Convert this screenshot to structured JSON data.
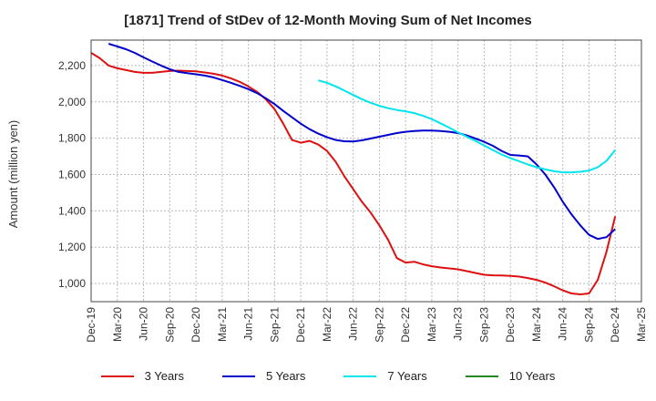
{
  "chart_data": {
    "type": "line",
    "title": "[1871]  Trend of StDev of 12-Month Moving Sum of Net Incomes",
    "ylabel": "Amount (million yen)",
    "xlabel": "",
    "ylim": [
      900,
      2340
    ],
    "yticks": [
      1000,
      1200,
      1400,
      1600,
      1800,
      2000,
      2200
    ],
    "ytick_labels": [
      "1,000",
      "1,200",
      "1,400",
      "1,600",
      "1,800",
      "2,000",
      "2,200"
    ],
    "xlim": [
      "2019-12",
      "2025-03"
    ],
    "xticks": [
      "2019-12",
      "2020-03",
      "2020-06",
      "2020-09",
      "2020-12",
      "2021-03",
      "2021-06",
      "2021-09",
      "2021-12",
      "2022-03",
      "2022-06",
      "2022-09",
      "2022-12",
      "2023-03",
      "2023-06",
      "2023-09",
      "2023-12",
      "2024-03",
      "2024-06",
      "2024-09",
      "2024-12",
      "2025-03"
    ],
    "xtick_labels": [
      "Dec-19",
      "Mar-20",
      "Jun-20",
      "Sep-20",
      "Dec-20",
      "Mar-21",
      "Jun-21",
      "Sep-21",
      "Dec-21",
      "Mar-22",
      "Jun-22",
      "Sep-22",
      "Dec-22",
      "Mar-23",
      "Jun-23",
      "Sep-23",
      "Dec-23",
      "Mar-24",
      "Jun-24",
      "Sep-24",
      "Dec-24",
      "Mar-25"
    ],
    "grid": true,
    "legend_position": "bottom",
    "series": [
      {
        "name": "3 Years",
        "color": "#dd1111",
        "points": [
          [
            "2019-12",
            2270
          ],
          [
            "2020-01",
            2240
          ],
          [
            "2020-02",
            2200
          ],
          [
            "2020-03",
            2185
          ],
          [
            "2020-04",
            2175
          ],
          [
            "2020-05",
            2165
          ],
          [
            "2020-06",
            2160
          ],
          [
            "2020-07",
            2160
          ],
          [
            "2020-08",
            2165
          ],
          [
            "2020-09",
            2170
          ],
          [
            "2020-10",
            2172
          ],
          [
            "2020-11",
            2170
          ],
          [
            "2020-12",
            2168
          ],
          [
            "2021-01",
            2162
          ],
          [
            "2021-02",
            2155
          ],
          [
            "2021-03",
            2145
          ],
          [
            "2021-04",
            2130
          ],
          [
            "2021-05",
            2110
          ],
          [
            "2021-06",
            2085
          ],
          [
            "2021-07",
            2055
          ],
          [
            "2021-08",
            2015
          ],
          [
            "2021-09",
            1960
          ],
          [
            "2021-10",
            1880
          ],
          [
            "2021-11",
            1790
          ],
          [
            "2021-12",
            1775
          ],
          [
            "2022-01",
            1785
          ],
          [
            "2022-02",
            1765
          ],
          [
            "2022-03",
            1730
          ],
          [
            "2022-04",
            1670
          ],
          [
            "2022-05",
            1590
          ],
          [
            "2022-06",
            1520
          ],
          [
            "2022-07",
            1450
          ],
          [
            "2022-08",
            1390
          ],
          [
            "2022-09",
            1320
          ],
          [
            "2022-10",
            1240
          ],
          [
            "2022-11",
            1140
          ],
          [
            "2022-12",
            1115
          ],
          [
            "2023-01",
            1120
          ],
          [
            "2023-02",
            1105
          ],
          [
            "2023-03",
            1095
          ],
          [
            "2023-04",
            1088
          ],
          [
            "2023-05",
            1083
          ],
          [
            "2023-06",
            1078
          ],
          [
            "2023-07",
            1068
          ],
          [
            "2023-08",
            1058
          ],
          [
            "2023-09",
            1048
          ],
          [
            "2023-10",
            1045
          ],
          [
            "2023-11",
            1044
          ],
          [
            "2023-12",
            1042
          ],
          [
            "2024-01",
            1038
          ],
          [
            "2024-02",
            1030
          ],
          [
            "2024-03",
            1020
          ],
          [
            "2024-04",
            1005
          ],
          [
            "2024-05",
            985
          ],
          [
            "2024-06",
            962
          ],
          [
            "2024-07",
            945
          ],
          [
            "2024-08",
            940
          ],
          [
            "2024-09",
            945
          ],
          [
            "2024-10",
            1020
          ],
          [
            "2024-11",
            1175
          ],
          [
            "2024-12",
            1370
          ]
        ]
      },
      {
        "name": "5 Years",
        "color": "#0000cc",
        "points": [
          [
            "2020-02",
            2320
          ],
          [
            "2020-03",
            2305
          ],
          [
            "2020-04",
            2290
          ],
          [
            "2020-05",
            2270
          ],
          [
            "2020-06",
            2245
          ],
          [
            "2020-07",
            2222
          ],
          [
            "2020-08",
            2200
          ],
          [
            "2020-09",
            2180
          ],
          [
            "2020-10",
            2165
          ],
          [
            "2020-11",
            2158
          ],
          [
            "2020-12",
            2152
          ],
          [
            "2021-01",
            2145
          ],
          [
            "2021-02",
            2135
          ],
          [
            "2021-03",
            2120
          ],
          [
            "2021-04",
            2105
          ],
          [
            "2021-05",
            2088
          ],
          [
            "2021-06",
            2070
          ],
          [
            "2021-07",
            2048
          ],
          [
            "2021-08",
            2020
          ],
          [
            "2021-09",
            1988
          ],
          [
            "2021-10",
            1950
          ],
          [
            "2021-11",
            1915
          ],
          [
            "2021-12",
            1880
          ],
          [
            "2022-01",
            1850
          ],
          [
            "2022-02",
            1825
          ],
          [
            "2022-03",
            1805
          ],
          [
            "2022-04",
            1790
          ],
          [
            "2022-05",
            1783
          ],
          [
            "2022-06",
            1782
          ],
          [
            "2022-07",
            1788
          ],
          [
            "2022-08",
            1798
          ],
          [
            "2022-09",
            1808
          ],
          [
            "2022-10",
            1818
          ],
          [
            "2022-11",
            1828
          ],
          [
            "2022-12",
            1835
          ],
          [
            "2023-01",
            1840
          ],
          [
            "2023-02",
            1842
          ],
          [
            "2023-03",
            1842
          ],
          [
            "2023-04",
            1840
          ],
          [
            "2023-05",
            1835
          ],
          [
            "2023-06",
            1828
          ],
          [
            "2023-07",
            1815
          ],
          [
            "2023-08",
            1798
          ],
          [
            "2023-09",
            1780
          ],
          [
            "2023-10",
            1758
          ],
          [
            "2023-11",
            1730
          ],
          [
            "2023-12",
            1708
          ],
          [
            "2024-01",
            1705
          ],
          [
            "2024-02",
            1700
          ],
          [
            "2024-03",
            1655
          ],
          [
            "2024-04",
            1600
          ],
          [
            "2024-05",
            1530
          ],
          [
            "2024-06",
            1450
          ],
          [
            "2024-07",
            1380
          ],
          [
            "2024-08",
            1320
          ],
          [
            "2024-09",
            1268
          ],
          [
            "2024-10",
            1245
          ],
          [
            "2024-11",
            1255
          ],
          [
            "2024-12",
            1300
          ]
        ]
      },
      {
        "name": "7 Years",
        "color": "#00e5ee",
        "points": [
          [
            "2022-02",
            2118
          ],
          [
            "2022-03",
            2105
          ],
          [
            "2022-04",
            2085
          ],
          [
            "2022-05",
            2062
          ],
          [
            "2022-06",
            2038
          ],
          [
            "2022-07",
            2015
          ],
          [
            "2022-08",
            1995
          ],
          [
            "2022-09",
            1978
          ],
          [
            "2022-10",
            1965
          ],
          [
            "2022-11",
            1955
          ],
          [
            "2022-12",
            1948
          ],
          [
            "2023-01",
            1938
          ],
          [
            "2023-02",
            1923
          ],
          [
            "2023-03",
            1905
          ],
          [
            "2023-04",
            1882
          ],
          [
            "2023-05",
            1858
          ],
          [
            "2023-06",
            1832
          ],
          [
            "2023-07",
            1808
          ],
          [
            "2023-08",
            1785
          ],
          [
            "2023-09",
            1760
          ],
          [
            "2023-10",
            1735
          ],
          [
            "2023-11",
            1710
          ],
          [
            "2023-12",
            1690
          ],
          [
            "2024-01",
            1673
          ],
          [
            "2024-02",
            1655
          ],
          [
            "2024-03",
            1640
          ],
          [
            "2024-04",
            1628
          ],
          [
            "2024-05",
            1618
          ],
          [
            "2024-06",
            1612
          ],
          [
            "2024-07",
            1612
          ],
          [
            "2024-08",
            1615
          ],
          [
            "2024-09",
            1622
          ],
          [
            "2024-10",
            1640
          ],
          [
            "2024-11",
            1675
          ],
          [
            "2024-12",
            1735
          ]
        ]
      },
      {
        "name": "10 Years",
        "color": "#228822",
        "points": []
      }
    ]
  }
}
